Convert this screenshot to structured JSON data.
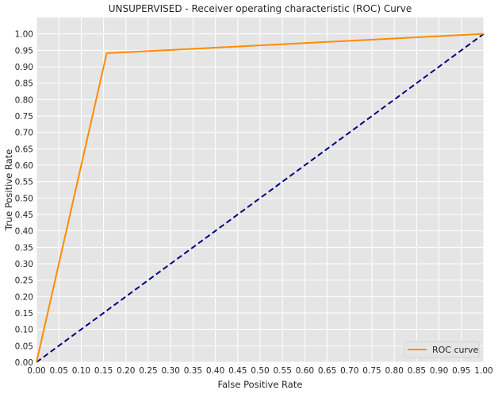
{
  "chart_data": {
    "type": "line",
    "title": "UNSUPERVISED - Receiver operating characteristic (ROC) Curve",
    "xlabel": "False Positive Rate",
    "ylabel": "True Positive Rate",
    "xlim": [
      0.0,
      1.0
    ],
    "ylim": [
      0.0,
      1.05
    ],
    "x_ticks": [
      "0.00",
      "0.05",
      "0.10",
      "0.15",
      "0.20",
      "0.25",
      "0.30",
      "0.35",
      "0.40",
      "0.45",
      "0.50",
      "0.55",
      "0.60",
      "0.65",
      "0.70",
      "0.75",
      "0.80",
      "0.85",
      "0.90",
      "0.95",
      "1.00"
    ],
    "y_ticks": [
      "0.00",
      "0.05",
      "0.10",
      "0.15",
      "0.20",
      "0.25",
      "0.30",
      "0.35",
      "0.40",
      "0.45",
      "0.50",
      "0.55",
      "0.60",
      "0.65",
      "0.70",
      "0.75",
      "0.80",
      "0.85",
      "0.90",
      "0.95",
      "1.00"
    ],
    "grid": true,
    "legend_position": "lower-right",
    "series": [
      {
        "name": "ROC curve",
        "color": "#ff8c00",
        "line_style": "solid",
        "x": [
          0.0,
          0.157,
          1.0
        ],
        "y": [
          0.0,
          0.941,
          1.0
        ]
      },
      {
        "color": "#000080",
        "line_style": "dashed",
        "x": [
          0.0,
          1.0
        ],
        "y": [
          0.0,
          1.0
        ]
      }
    ],
    "colors": {
      "plot_background": "#e5e5e5",
      "grid": "#ffffff"
    }
  }
}
